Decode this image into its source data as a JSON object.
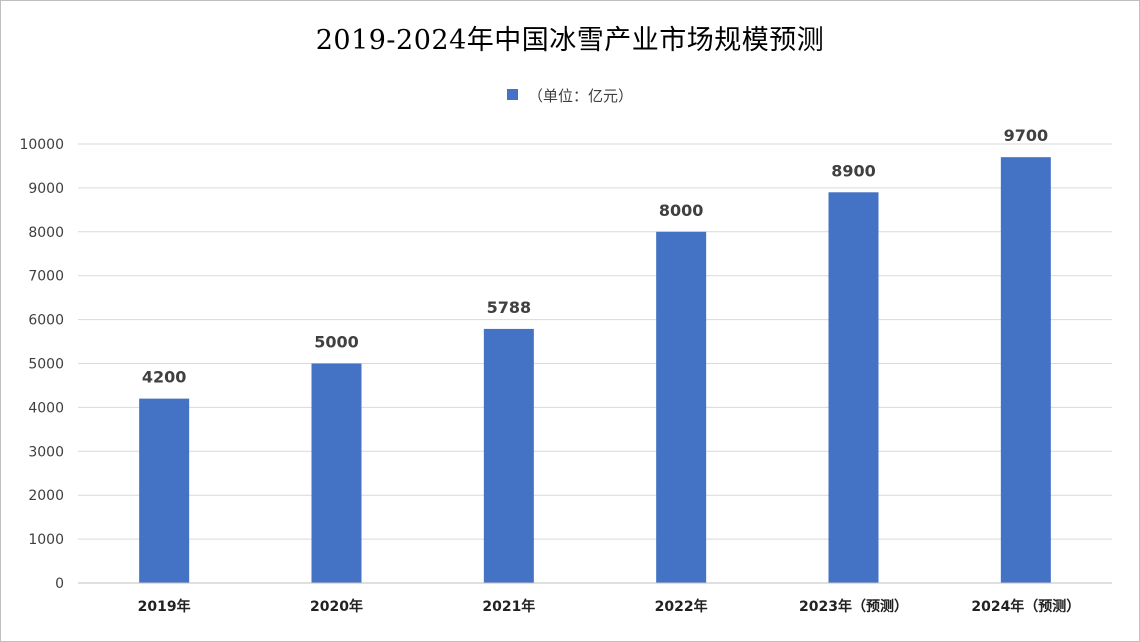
{
  "chart_data": {
    "type": "bar",
    "title": "2019-2024年中国冰雪产业市场规模预测",
    "xlabel": "",
    "ylabel": "",
    "categories": [
      "2019年",
      "2020年",
      "2021年",
      "2022年",
      "2023年（预测）",
      "2024年（预测）"
    ],
    "series": [
      {
        "name": "（单位：亿元）",
        "values": [
          4200,
          5000,
          5788,
          8000,
          8900,
          9700
        ],
        "color": "#4472C4"
      }
    ],
    "ylim": [
      0,
      10000
    ],
    "yticks": [
      0,
      1000,
      2000,
      3000,
      4000,
      5000,
      6000,
      7000,
      8000,
      9000,
      10000
    ],
    "grid": true,
    "legend_position": "top",
    "data_labels": true
  }
}
